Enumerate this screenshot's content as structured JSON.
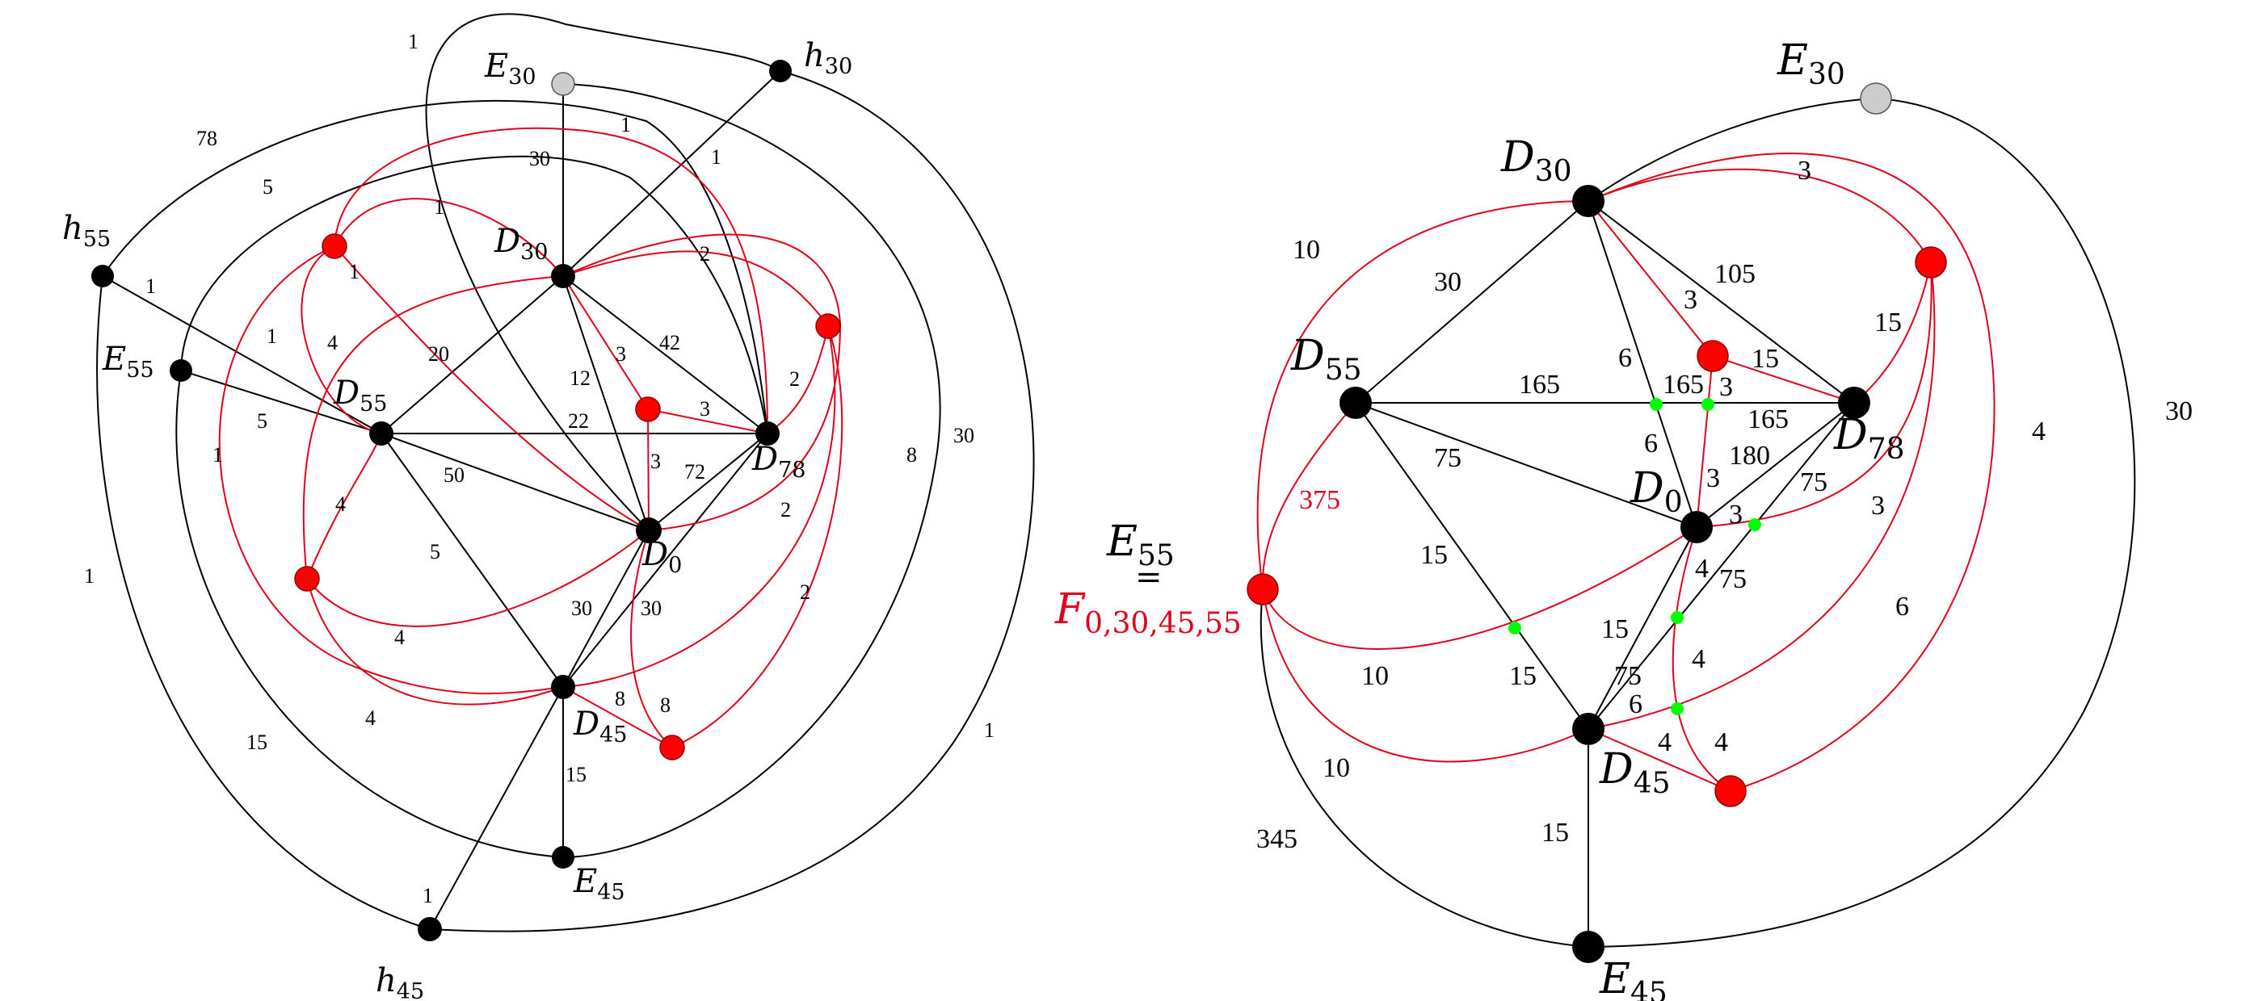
{
  "colors": {
    "black_edge": "#000000",
    "red_edge": "#e0001b",
    "black_node": "#000000",
    "red_node": "#ff0000",
    "gray_node": "#cccccc",
    "green_node": "#00ff00"
  },
  "left_graph": {
    "nodes": {
      "E30": {
        "base": "E",
        "sub": "30"
      },
      "h30": {
        "base": "h",
        "sub": "30"
      },
      "D30": {
        "base": "D",
        "sub": "30"
      },
      "h55": {
        "base": "h",
        "sub": "55"
      },
      "E55": {
        "base": "E",
        "sub": "55"
      },
      "D55": {
        "base": "D",
        "sub": "55"
      },
      "D78": {
        "base": "D",
        "sub": "78"
      },
      "D0": {
        "base": "D",
        "sub": "0"
      },
      "D45": {
        "base": "D",
        "sub": "45"
      },
      "E45": {
        "base": "E",
        "sub": "45"
      },
      "h45": {
        "base": "h",
        "sub": "45"
      }
    },
    "weights": [
      "1",
      "1",
      "30",
      "78",
      "5",
      "1",
      "1",
      "1",
      "2",
      "1",
      "4",
      "1",
      "20",
      "3",
      "42",
      "12",
      "2",
      "5",
      "22",
      "3",
      "1",
      "50",
      "3",
      "72",
      "4",
      "5",
      "30",
      "30",
      "8",
      "8",
      "2",
      "4",
      "4",
      "15",
      "1",
      "8",
      "2",
      "15",
      "30",
      "1",
      "1"
    ]
  },
  "right_graph": {
    "nodes": {
      "E30": {
        "base": "E",
        "sub": "30"
      },
      "D30": {
        "base": "D",
        "sub": "30"
      },
      "D55": {
        "base": "D",
        "sub": "55"
      },
      "D78": {
        "base": "D",
        "sub": "78"
      },
      "D0": {
        "base": "D",
        "sub": "0"
      },
      "E55": {
        "base": "E",
        "sub": "55"
      },
      "equals": "=",
      "F": {
        "base": "F",
        "sub": "0,30,45,55"
      },
      "D45": {
        "base": "D",
        "sub": "45"
      },
      "E45": {
        "base": "E",
        "sub": "45"
      }
    },
    "weights": [
      "3",
      "10",
      "30",
      "105",
      "15",
      "3",
      "15",
      "6",
      "165",
      "165",
      "3",
      "165",
      "30",
      "75",
      "6",
      "3",
      "180",
      "75",
      "375",
      "3",
      "3",
      "4",
      "75",
      "15",
      "4",
      "15",
      "75",
      "6",
      "15",
      "4",
      "4",
      "10",
      "10",
      "345",
      "15",
      "6",
      "4"
    ]
  }
}
